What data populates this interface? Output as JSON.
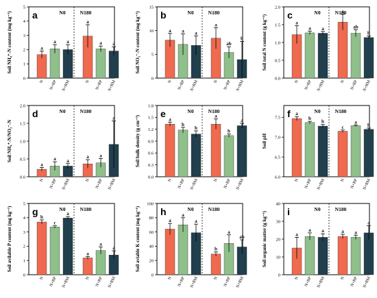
{
  "colors": {
    "N": "#ef6a4f",
    "N+RP": "#8fbf8a",
    "N+RM": "#213f4c"
  },
  "groups": [
    "N0",
    "N180"
  ],
  "treatments": [
    "N",
    "N+RP",
    "N+RM"
  ],
  "chart_data": [
    {
      "type": "bar",
      "panel": "a",
      "ylabel": "Soil NH₄⁺-N content (mg kg⁻¹)",
      "ylim": [
        0,
        5
      ],
      "yticks": [
        "0",
        "1",
        "2",
        "3",
        "4",
        "5"
      ],
      "series": [
        {
          "group": "N0",
          "values": [
            1.65,
            2.05,
            2.0
          ],
          "errors": [
            0.25,
            0.3,
            0.35
          ],
          "letters": [
            "a",
            "a",
            "a"
          ]
        },
        {
          "group": "N180",
          "values": [
            2.95,
            2.05,
            1.9
          ],
          "errors": [
            0.8,
            0.2,
            0.3
          ],
          "letters": [
            "a",
            "a",
            "a"
          ]
        }
      ]
    },
    {
      "type": "bar",
      "panel": "b",
      "ylabel": "Soil NO₃⁻-N content (mg kg⁻¹)",
      "ylim": [
        0,
        15
      ],
      "yticks": [
        "0",
        "5",
        "10",
        "15"
      ],
      "series": [
        {
          "group": "N0",
          "values": [
            8.0,
            7.1,
            6.9
          ],
          "errors": [
            1.4,
            2.2,
            2.0
          ],
          "letters": [
            "a",
            "a",
            "a"
          ]
        },
        {
          "group": "N180",
          "values": [
            8.4,
            5.4,
            3.9
          ],
          "errors": [
            2.2,
            1.2,
            3.8
          ],
          "letters": [
            "a",
            "ab",
            "b"
          ]
        }
      ]
    },
    {
      "type": "bar",
      "panel": "c",
      "ylabel": "Soil total N content (g kg⁻¹)",
      "ylim": [
        0,
        2.0
      ],
      "yticks": [
        "0.0",
        "0.5",
        "1.0",
        "1.5",
        "2.0"
      ],
      "series": [
        {
          "group": "N0",
          "values": [
            1.22,
            1.27,
            1.26
          ],
          "errors": [
            0.25,
            0.05,
            0.05
          ],
          "letters": [
            "a",
            "a",
            "a"
          ]
        },
        {
          "group": "N180",
          "values": [
            1.57,
            1.26,
            1.14
          ],
          "errors": [
            0.22,
            0.1,
            0.04
          ],
          "letters": [
            "a",
            "ab",
            "b"
          ]
        }
      ]
    },
    {
      "type": "bar",
      "panel": "d",
      "ylabel": "Soil NH₄⁺-N/NO₃⁻-N",
      "ylim": [
        0,
        2.0
      ],
      "yticks": [
        "0.0",
        "0.5",
        "1.0",
        "1.5",
        "2.0"
      ],
      "series": [
        {
          "group": "N0",
          "values": [
            0.21,
            0.3,
            0.3
          ],
          "errors": [
            0.05,
            0.12,
            0.07
          ],
          "letters": [
            "a",
            "a",
            "a"
          ]
        },
        {
          "group": "N180",
          "values": [
            0.36,
            0.39,
            0.91
          ],
          "errors": [
            0.12,
            0.12,
            0.66
          ],
          "letters": [
            "a",
            "a",
            "a"
          ]
        }
      ]
    },
    {
      "type": "bar",
      "panel": "e",
      "ylabel": "Soil bulk density (g cm⁻³)",
      "ylim": [
        0,
        1.8
      ],
      "yticks": [
        "0.0",
        "0.3",
        "0.6",
        "0.9",
        "1.2",
        "1.5",
        "1.8"
      ],
      "series": [
        {
          "group": "N0",
          "values": [
            1.33,
            1.18,
            1.08
          ],
          "errors": [
            0.05,
            0.07,
            0.08
          ],
          "letters": [
            "a",
            "b",
            "b"
          ]
        },
        {
          "group": "N180",
          "values": [
            1.33,
            1.04,
            1.29
          ],
          "errors": [
            0.13,
            0.04,
            0.06
          ],
          "letters": [
            "a",
            "b",
            "a"
          ]
        }
      ]
    },
    {
      "type": "bar",
      "panel": "f",
      "ylabel": "Soil pH",
      "ylim": [
        6.0,
        7.8
      ],
      "yticks": [
        "6.0",
        "6.5",
        "7.0",
        "7.5"
      ],
      "series": [
        {
          "group": "N0",
          "values": [
            7.47,
            7.37,
            7.28
          ],
          "errors": [
            0.05,
            0.03,
            0.04
          ],
          "letters": [
            "a",
            "b",
            "b"
          ]
        },
        {
          "group": "N180",
          "values": [
            7.15,
            7.29,
            7.2
          ],
          "errors": [
            0.03,
            0.02,
            0.03
          ],
          "letters": [
            "c",
            "a",
            "b"
          ]
        }
      ]
    },
    {
      "type": "bar",
      "panel": "g",
      "ylabel": "Soil avilable P content (mg kg⁻¹)",
      "ylim": [
        0,
        5
      ],
      "yticks": [
        "0",
        "1",
        "2",
        "3",
        "4",
        "5"
      ],
      "series": [
        {
          "group": "N0",
          "values": [
            3.7,
            3.35,
            3.98
          ],
          "errors": [
            0.15,
            0.08,
            0.1
          ],
          "letters": [
            "b",
            "c",
            "a"
          ]
        },
        {
          "group": "N180",
          "values": [
            1.18,
            1.7,
            1.38
          ],
          "errors": [
            0.1,
            0.25,
            0.3
          ],
          "letters": [
            "a",
            "a",
            "a"
          ]
        }
      ]
    },
    {
      "type": "bar",
      "panel": "h",
      "ylabel": "Soil aviable K content (mg kg⁻¹)",
      "ylim": [
        0,
        100
      ],
      "yticks": [
        "0",
        "20",
        "40",
        "60",
        "80",
        "100"
      ],
      "series": [
        {
          "group": "N0",
          "values": [
            64,
            70,
            59
          ],
          "errors": [
            8,
            10,
            12
          ],
          "letters": [
            "a",
            "a",
            "a"
          ]
        },
        {
          "group": "N180",
          "values": [
            29,
            44,
            39
          ],
          "errors": [
            3,
            12,
            10
          ],
          "letters": [
            "b",
            "a",
            "ab"
          ]
        }
      ]
    },
    {
      "type": "bar",
      "panel": "i",
      "ylabel": "Soil organic matter (g kg⁻¹)",
      "ylim": [
        0,
        40
      ],
      "yticks": [
        "0",
        "10",
        "20",
        "30",
        "40"
      ],
      "series": [
        {
          "group": "N0",
          "values": [
            15,
            21.5,
            21
          ],
          "errors": [
            6,
            2,
            2
          ],
          "letters": [
            "a",
            "a",
            "a"
          ]
        },
        {
          "group": "N180",
          "values": [
            21.5,
            21,
            23.5
          ],
          "errors": [
            1.2,
            1.2,
            4
          ],
          "letters": [
            "a",
            "a",
            "a"
          ]
        }
      ]
    }
  ]
}
